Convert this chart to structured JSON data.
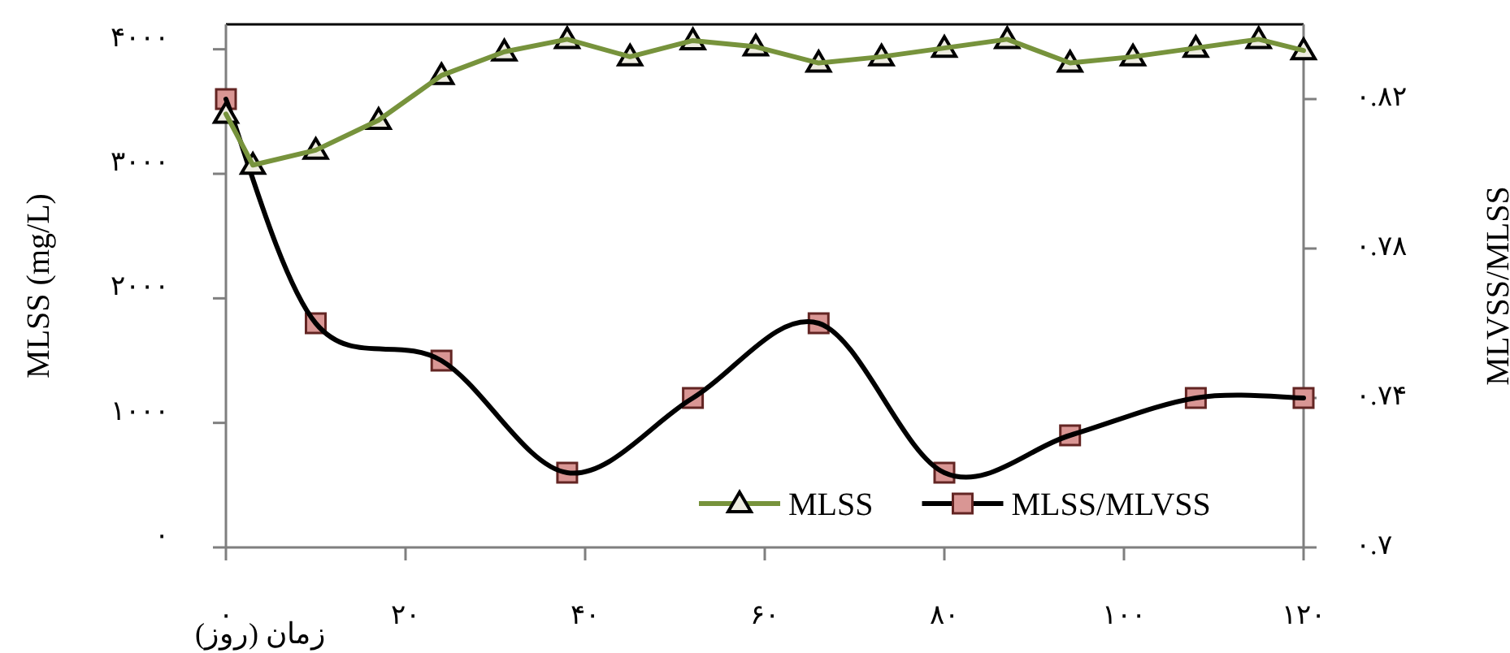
{
  "chart_data": {
    "type": "line",
    "xlabel": "زمان (روز)",
    "ylabel": "MLSS (mg/L)",
    "y2label": "MLVSS/MLSS",
    "xlim": [
      0,
      120
    ],
    "xticks": [
      {
        "value": 0,
        "label": "۰"
      },
      {
        "value": 20,
        "label": "۲۰"
      },
      {
        "value": 40,
        "label": "۴۰"
      },
      {
        "value": 60,
        "label": "۶۰"
      },
      {
        "value": 80,
        "label": "۸۰"
      },
      {
        "value": 100,
        "label": "۱۰۰"
      },
      {
        "value": 120,
        "label": "۱۲۰"
      }
    ],
    "ylim": [
      0,
      4200
    ],
    "yticks": [
      {
        "value": 0,
        "label": "۰"
      },
      {
        "value": 1000,
        "label": "۱۰۰۰"
      },
      {
        "value": 2000,
        "label": "۲۰۰۰"
      },
      {
        "value": 3000,
        "label": "۳۰۰۰"
      },
      {
        "value": 4000,
        "label": "۴۰۰۰"
      }
    ],
    "y2lim": [
      0.7,
      0.84
    ],
    "y2ticks": [
      {
        "value": 0.7,
        "label": "۰.۷"
      },
      {
        "value": 0.74,
        "label": "۰.۷۴"
      },
      {
        "value": 0.78,
        "label": "۰.۷۸"
      },
      {
        "value": 0.82,
        "label": "۰.۸۲"
      }
    ],
    "legend": "bottom right",
    "series": [
      {
        "name": "MLSS",
        "color": "#77933c",
        "marker": "triangle",
        "x": [
          0,
          3,
          10,
          17,
          24,
          31,
          38,
          45,
          52,
          59,
          66,
          73,
          80,
          87,
          94,
          101,
          108,
          115,
          120
        ],
        "values": [
          3480,
          3070,
          3190,
          3430,
          3790,
          3980,
          4080,
          3940,
          4070,
          4020,
          3890,
          3940,
          4010,
          4080,
          3890,
          3940,
          4010,
          4080,
          3990
        ]
      },
      {
        "name": "MLSS/MLVSS",
        "color": "#000000",
        "marker": "square",
        "axis": "y2",
        "x": [
          0,
          10,
          24,
          38,
          52,
          66,
          80,
          94,
          108,
          120
        ],
        "values": [
          0.82,
          0.76,
          0.75,
          0.72,
          0.74,
          0.76,
          0.72,
          0.73,
          0.74,
          0.74
        ]
      }
    ]
  }
}
